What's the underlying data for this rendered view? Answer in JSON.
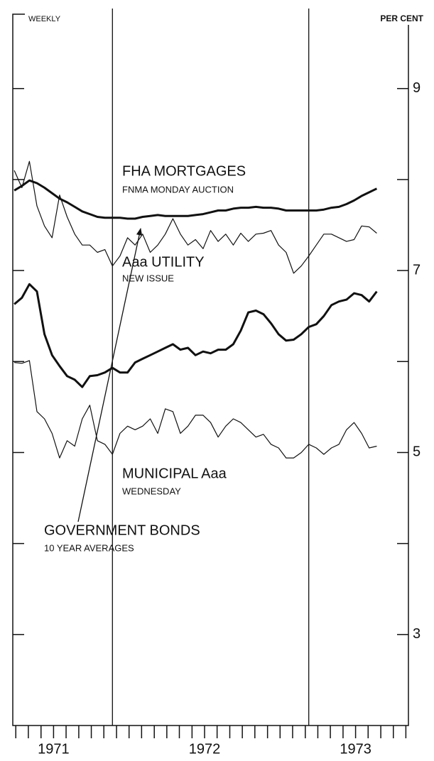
{
  "chart_data": {
    "type": "line",
    "corner_label": "WEEKLY",
    "ylabel": "PER CENT",
    "xlim": [
      1970.73,
      1973.35
    ],
    "xticks": [
      1971,
      1972,
      1973
    ],
    "minor_xticks": [
      1970.75,
      1970.833,
      1970.917,
      1971,
      1971.083,
      1971.167,
      1971.25,
      1971.333,
      1971.417,
      1971.5,
      1971.583,
      1971.667,
      1971.75,
      1971.833,
      1971.917,
      1972,
      1972.083,
      1972.167,
      1972.25,
      1972.333,
      1972.417,
      1972.5,
      1972.583,
      1972.667,
      1972.75,
      1972.833,
      1972.917,
      1973,
      1973.083,
      1973.167,
      1973.25,
      1973.333
    ],
    "reference_lines_x": [
      1971.39,
      1972.69
    ],
    "ylim": [
      2,
      9.7
    ],
    "yticks": [
      3,
      5,
      7,
      9
    ],
    "minor_yticks": [
      4,
      6,
      8
    ],
    "x": [
      1970.74,
      1970.79,
      1970.84,
      1970.89,
      1970.94,
      1970.99,
      1971.04,
      1971.09,
      1971.14,
      1971.19,
      1971.24,
      1971.29,
      1971.34,
      1971.39,
      1971.44,
      1971.49,
      1971.54,
      1971.59,
      1971.64,
      1971.69,
      1971.74,
      1971.79,
      1971.84,
      1971.89,
      1971.94,
      1971.99,
      1972.04,
      1972.09,
      1972.14,
      1972.19,
      1972.24,
      1972.29,
      1972.34,
      1972.39,
      1972.44,
      1972.49,
      1972.54,
      1972.59,
      1972.64,
      1972.69,
      1972.74,
      1972.79,
      1972.84,
      1972.89,
      1972.94,
      1972.99,
      1973.04,
      1973.09,
      1973.14
    ],
    "series": [
      {
        "name": "FHA MORTGAGES",
        "note": "FNMA MONDAY AUCTION",
        "color": "#111111",
        "line_width": 3,
        "values": [
          7.88,
          7.93,
          7.99,
          7.96,
          7.91,
          7.85,
          7.79,
          7.75,
          7.7,
          7.65,
          7.62,
          7.59,
          7.58,
          7.58,
          7.58,
          7.57,
          7.57,
          7.59,
          7.6,
          7.61,
          7.6,
          7.6,
          7.6,
          7.6,
          7.61,
          7.62,
          7.64,
          7.66,
          7.66,
          7.68,
          7.69,
          7.69,
          7.7,
          7.69,
          7.69,
          7.68,
          7.66,
          7.66,
          7.66,
          7.66,
          7.66,
          7.67,
          7.69,
          7.7,
          7.73,
          7.77,
          7.82,
          7.86,
          7.9
        ]
      },
      {
        "name": "Aaa UTILITY",
        "note": "NEW ISSUE",
        "color": "#111111",
        "line_width": 1.2,
        "values": [
          8.1,
          7.91,
          8.2,
          7.71,
          7.49,
          7.36,
          7.83,
          7.59,
          7.4,
          7.28,
          7.28,
          7.2,
          7.23,
          7.05,
          7.16,
          7.36,
          7.28,
          7.4,
          7.2,
          7.28,
          7.4,
          7.57,
          7.4,
          7.28,
          7.34,
          7.24,
          7.44,
          7.32,
          7.4,
          7.28,
          7.41,
          7.32,
          7.4,
          7.41,
          7.44,
          7.28,
          7.2,
          6.97,
          7.05,
          7.16,
          7.28,
          7.4,
          7.4,
          7.36,
          7.32,
          7.34,
          7.49,
          7.48,
          7.41
        ]
      },
      {
        "name": "GOVERNMENT BONDS",
        "note": "10 YEAR AVERAGES",
        "color": "#111111",
        "line_width": 3,
        "values": [
          6.63,
          6.7,
          6.85,
          6.77,
          6.3,
          6.07,
          5.95,
          5.84,
          5.8,
          5.72,
          5.84,
          5.85,
          5.88,
          5.93,
          5.88,
          5.88,
          5.99,
          6.03,
          6.07,
          6.11,
          6.15,
          6.19,
          6.13,
          6.15,
          6.07,
          6.11,
          6.09,
          6.13,
          6.13,
          6.19,
          6.34,
          6.54,
          6.56,
          6.52,
          6.42,
          6.3,
          6.23,
          6.24,
          6.3,
          6.38,
          6.41,
          6.5,
          6.62,
          6.66,
          6.68,
          6.75,
          6.73,
          6.66,
          6.77
        ]
      },
      {
        "name": "MUNICIPAL Aaa",
        "note": "WEDNESDAY",
        "color": "#111111",
        "line_width": 1.2,
        "values": [
          5.99,
          5.98,
          6.01,
          5.45,
          5.37,
          5.21,
          4.94,
          5.13,
          5.07,
          5.37,
          5.52,
          5.13,
          5.09,
          4.98,
          5.21,
          5.29,
          5.25,
          5.29,
          5.37,
          5.21,
          5.48,
          5.45,
          5.21,
          5.29,
          5.41,
          5.41,
          5.33,
          5.17,
          5.29,
          5.37,
          5.33,
          5.25,
          5.17,
          5.2,
          5.09,
          5.05,
          4.94,
          4.94,
          5.0,
          5.09,
          5.05,
          4.98,
          5.05,
          5.09,
          5.25,
          5.33,
          5.21,
          5.05,
          5.07
        ]
      }
    ]
  }
}
